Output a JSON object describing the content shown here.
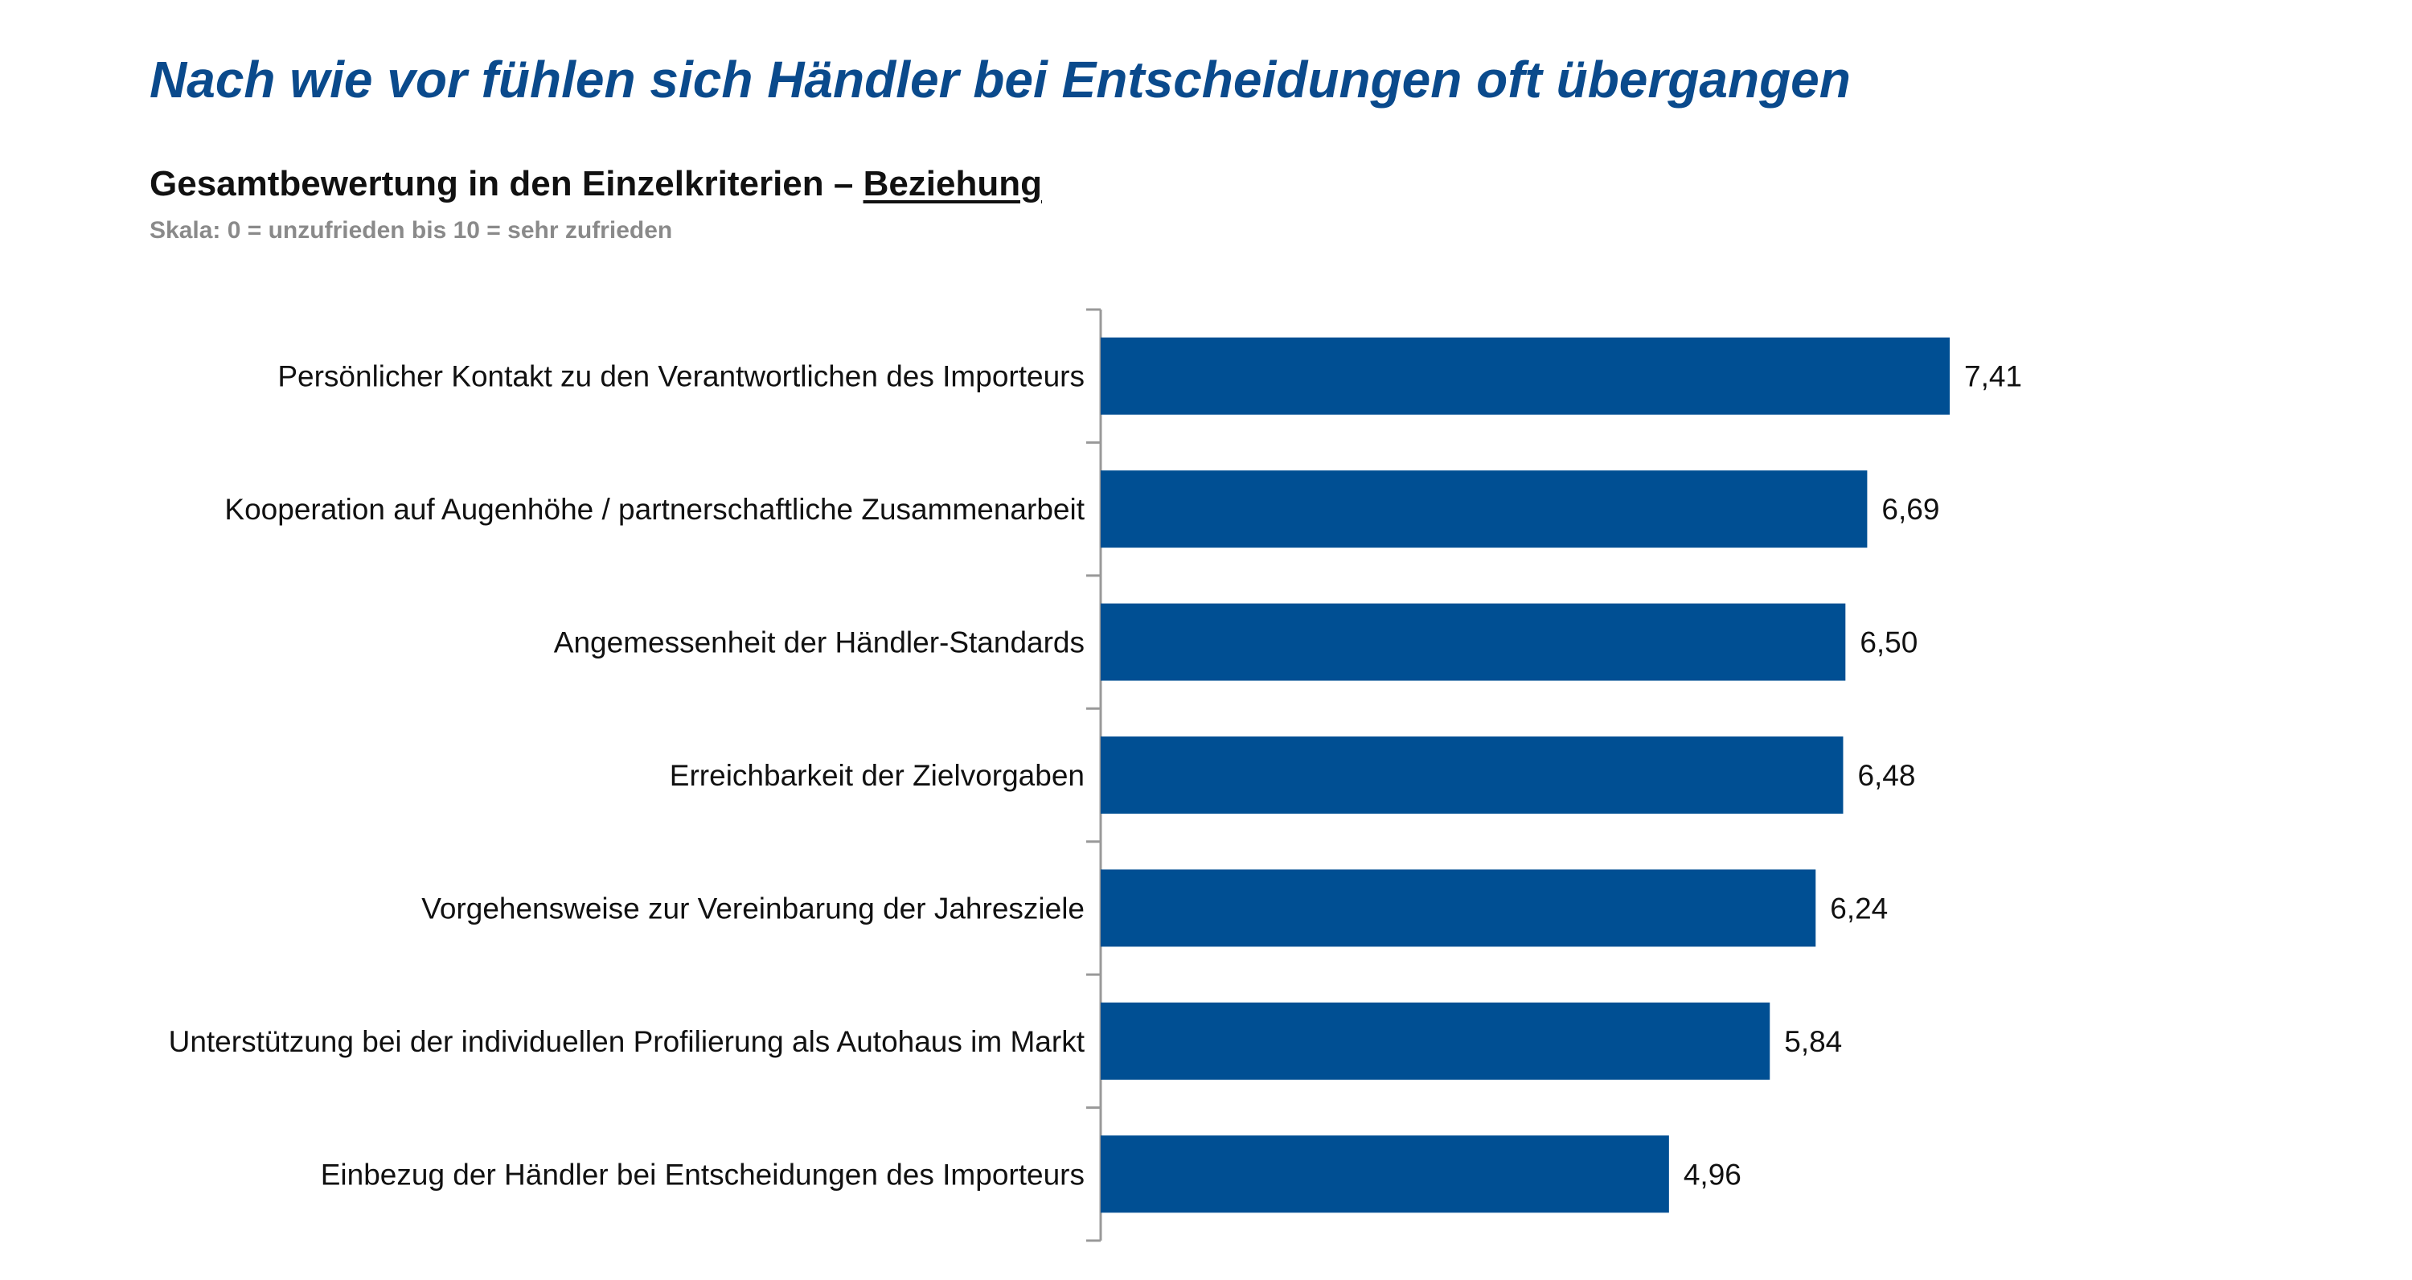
{
  "page": {
    "title": "Nach wie vor fühlen sich Händler bei Entscheidungen oft übergangen"
  },
  "chart_data": {
    "type": "bar",
    "orientation": "horizontal",
    "title_prefix": "Gesamtbewertung in den Einzelkriterien – ",
    "title_emphasis": "Beziehung",
    "subtitle": "Skala: 0 = unzufrieden bis 10 = sehr zufrieden",
    "categories": [
      "Persönlicher Kontakt zu den Verantwortlichen des Importeurs",
      "Kooperation auf Augenhöhe / partnerschaftliche Zusammenarbeit",
      "Angemessenheit der Händler-Standards",
      "Erreichbarkeit der Zielvorgaben",
      "Vorgehensweise zur Vereinbarung der Jahresziele",
      "Unterstützung bei der individuellen Profilierung als Autohaus im Markt",
      "Einbezug der Händler bei Entscheidungen des Importeurs"
    ],
    "values": [
      7.41,
      6.69,
      6.5,
      6.48,
      6.24,
      5.84,
      4.96
    ],
    "value_labels": [
      "7,41",
      "6,69",
      "6,50",
      "6,48",
      "6,24",
      "5,84",
      "4,96"
    ],
    "xlim": [
      0,
      10
    ],
    "grid": false,
    "legend": "none",
    "colors": {
      "bar": "#004f93",
      "title": "#0a4a8c",
      "axis": "#999999"
    }
  }
}
